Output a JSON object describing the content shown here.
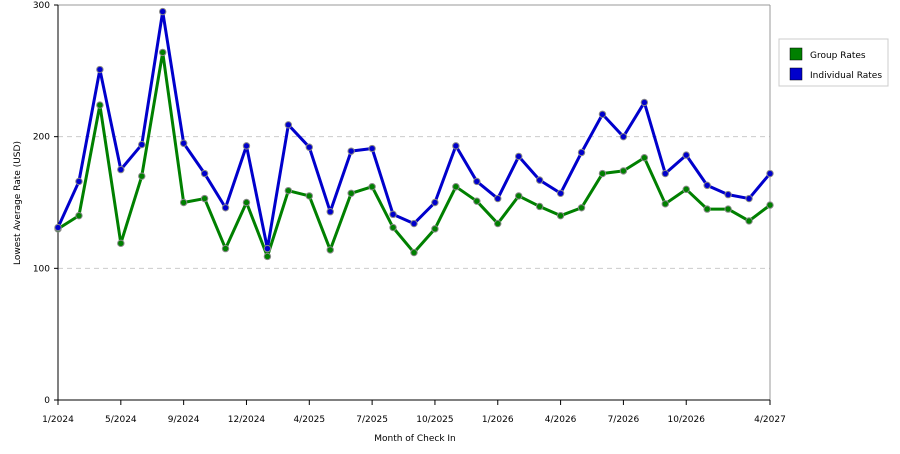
{
  "chart_data": {
    "type": "line",
    "x_label": "Month of Check In",
    "y_label": "Lowest Average Rate (USD)",
    "categories": [
      "1/2024",
      null,
      null,
      "5/2024",
      null,
      null,
      "9/2024",
      null,
      null,
      "12/2024",
      null,
      null,
      "4/2025",
      null,
      null,
      "7/2025",
      null,
      null,
      "10/2025",
      null,
      null,
      "1/2026",
      null,
      null,
      "4/2026",
      null,
      null,
      "7/2026",
      null,
      null,
      "10/2026",
      null,
      null,
      null,
      "4/2027"
    ],
    "series": [
      {
        "name": "Group Rates",
        "color": "#008000",
        "values": [
          130,
          140,
          224,
          119,
          170,
          264,
          150,
          153,
          115,
          150,
          109,
          159,
          155,
          114,
          157,
          162,
          131,
          112,
          130,
          162,
          151,
          134,
          155,
          147,
          140,
          146,
          172,
          174,
          184,
          149,
          160,
          145,
          145,
          136,
          148
        ]
      },
      {
        "name": "Individual Rates",
        "color": "#0000cc",
        "values": [
          131,
          166,
          251,
          175,
          194,
          295,
          195,
          172,
          146,
          193,
          115,
          209,
          192,
          143,
          189,
          191,
          141,
          134,
          150,
          193,
          166,
          153,
          185,
          167,
          157,
          188,
          217,
          200,
          226,
          172,
          186,
          163,
          156,
          153,
          172
        ]
      }
    ],
    "ylim": [
      0,
      300
    ],
    "yticks": [
      0,
      100,
      200,
      300
    ],
    "grid": true,
    "legend": "right"
  }
}
